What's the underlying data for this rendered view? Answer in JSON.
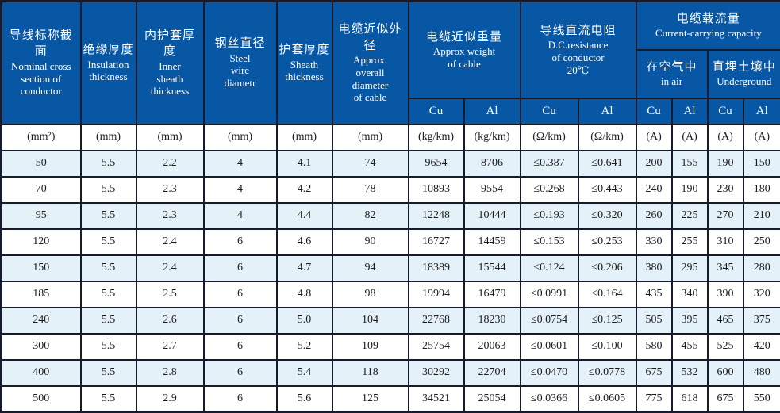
{
  "colors": {
    "header_bg": "#0857a5",
    "header_text": "#ffffff",
    "alt_row_bg": "#e4f1f8",
    "row_bg": "#ffffff",
    "border": "#151a2c",
    "body_text": "#1c1c1c"
  },
  "header": {
    "columns": [
      {
        "zh": "导线标称截面",
        "en": "Nominal cross\nsection of\nconductor"
      },
      {
        "zh": "绝缘厚度",
        "en": "Insulation\nthickness"
      },
      {
        "zh": "内护套厚度",
        "en": "Inner\nsheath\nthickness"
      },
      {
        "zh": "钢丝直径",
        "en": "Steel\nwire\ndiametr"
      },
      {
        "zh": "护套厚度",
        "en": "Sheath\nthickness"
      },
      {
        "zh": "电缆近似外径",
        "en": "Approx.\noverall\ndiameter\nof cable"
      }
    ],
    "groups": {
      "weight": {
        "zh": "电缆近似重量",
        "en": "Approx weight\nof cable"
      },
      "resistance": {
        "zh": "导线直流电阻",
        "en": "D.C.resistance\nof conductor\n20℃"
      },
      "capacity": {
        "zh": "电缆载流量",
        "en": "Current-carrying capacity"
      },
      "in_air": {
        "zh": "在空气中",
        "en": "in air"
      },
      "underground": {
        "zh": "直埋土壤中",
        "en": "Underground"
      }
    },
    "materials": [
      "Cu",
      "Al",
      "Cu",
      "Al",
      "Cu",
      "Al",
      "Cu",
      "Al"
    ]
  },
  "units": [
    "(mm²)",
    "(mm)",
    "(mm)",
    "(mm)",
    "(mm)",
    "(mm)",
    "(kg/km)",
    "(kg/km)",
    "(Ω/km)",
    "(Ω/km)",
    "(A)",
    "(A)",
    "(A)",
    "(A)"
  ],
  "rows": [
    [
      "50",
      "5.5",
      "2.2",
      "4",
      "4.1",
      "74",
      "9654",
      "8706",
      "≤0.387",
      "≤0.641",
      "200",
      "155",
      "190",
      "150"
    ],
    [
      "70",
      "5.5",
      "2.3",
      "4",
      "4.2",
      "78",
      "10893",
      "9554",
      "≤0.268",
      "≤0.443",
      "240",
      "190",
      "230",
      "180"
    ],
    [
      "95",
      "5.5",
      "2.3",
      "4",
      "4.4",
      "82",
      "12248",
      "10444",
      "≤0.193",
      "≤0.320",
      "260",
      "225",
      "270",
      "210"
    ],
    [
      "120",
      "5.5",
      "2.4",
      "6",
      "4.6",
      "90",
      "16727",
      "14459",
      "≤0.153",
      "≤0.253",
      "330",
      "255",
      "310",
      "250"
    ],
    [
      "150",
      "5.5",
      "2.4",
      "6",
      "4.7",
      "94",
      "18389",
      "15544",
      "≤0.124",
      "≤0.206",
      "380",
      "295",
      "345",
      "280"
    ],
    [
      "185",
      "5.5",
      "2.5",
      "6",
      "4.8",
      "98",
      "19994",
      "16479",
      "≤0.0991",
      "≤0.164",
      "435",
      "340",
      "390",
      "320"
    ],
    [
      "240",
      "5.5",
      "2.6",
      "6",
      "5.0",
      "104",
      "22768",
      "18230",
      "≤0.0754",
      "≤0.125",
      "505",
      "395",
      "465",
      "375"
    ],
    [
      "300",
      "5.5",
      "2.7",
      "6",
      "5.2",
      "109",
      "25754",
      "20063",
      "≤0.0601",
      "≤0.100",
      "580",
      "455",
      "525",
      "420"
    ],
    [
      "400",
      "5.5",
      "2.8",
      "6",
      "5.4",
      "118",
      "30292",
      "22704",
      "≤0.0470",
      "≤0.0778",
      "675",
      "532",
      "600",
      "480"
    ],
    [
      "500",
      "5.5",
      "2.9",
      "6",
      "5.6",
      "125",
      "34521",
      "25054",
      "≤0.0366",
      "≤0.0605",
      "775",
      "618",
      "675",
      "550"
    ]
  ]
}
